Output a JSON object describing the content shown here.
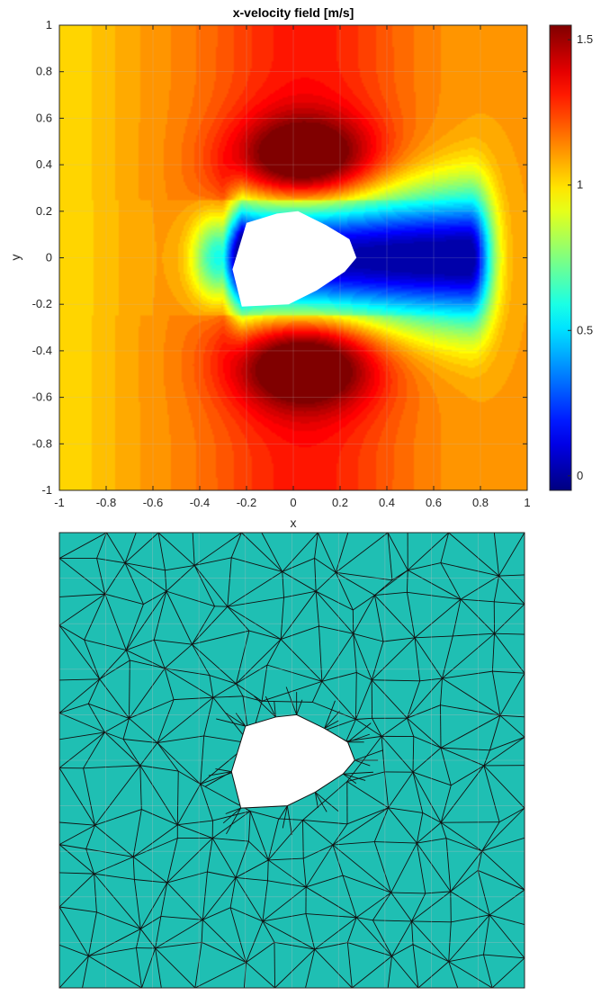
{
  "chart_data": [
    {
      "type": "heatmap",
      "title": "x-velocity field [m/s]",
      "xlabel": "x",
      "ylabel": "y",
      "xlim": [
        -1,
        1
      ],
      "ylim": [
        -1,
        1
      ],
      "xticks": [
        -1,
        -0.8,
        -0.6,
        -0.4,
        -0.2,
        0,
        0.2,
        0.4,
        0.6,
        0.8,
        1
      ],
      "xtick_labels": [
        "-1",
        "-0.8",
        "-0.6",
        "-0.4",
        "-0.2",
        "0",
        "0.2",
        "0.4",
        "0.6",
        "0.8",
        "1"
      ],
      "yticks": [
        1,
        0.8,
        0.6,
        0.4,
        0.2,
        0,
        -0.2,
        -0.4,
        -0.6,
        -0.8,
        -1
      ],
      "ytick_labels": [
        "1",
        "0.8",
        "0.6",
        "0.4",
        "0.2",
        "0",
        "-0.2",
        "-0.4",
        "-0.6",
        "-0.8",
        "-1"
      ],
      "grid": true,
      "colormap": "jet",
      "colorbar": {
        "limits": [
          -0.05,
          1.55
        ],
        "ticks": [
          0,
          0.5,
          1,
          1.5
        ],
        "tick_labels": [
          "0",
          "0.5",
          "1",
          "1.5"
        ]
      },
      "freestream_value": 1.1,
      "wake_min_value": 0.0,
      "max_value": 1.55,
      "obstacle_outline": [
        [
          -0.26,
          -0.05
        ],
        [
          -0.2,
          0.15
        ],
        [
          -0.07,
          0.19
        ],
        [
          0.02,
          0.2
        ],
        [
          0.14,
          0.14
        ],
        [
          0.24,
          0.08
        ],
        [
          0.27,
          0.0
        ],
        [
          0.22,
          -0.06
        ],
        [
          0.1,
          -0.14
        ],
        [
          -0.02,
          -0.2
        ],
        [
          -0.22,
          -0.21
        ]
      ]
    },
    {
      "type": "mesh",
      "xlim": [
        -1,
        1
      ],
      "ylim": [
        -1,
        1
      ],
      "face_color": "#1fbfb3",
      "edge_color": "#111111",
      "grid": true,
      "obstacle_outline": [
        [
          -0.26,
          -0.05
        ],
        [
          -0.2,
          0.15
        ],
        [
          -0.07,
          0.19
        ],
        [
          0.02,
          0.2
        ],
        [
          0.14,
          0.14
        ],
        [
          0.24,
          0.08
        ],
        [
          0.27,
          0.0
        ],
        [
          0.22,
          -0.06
        ],
        [
          0.1,
          -0.14
        ],
        [
          -0.02,
          -0.2
        ],
        [
          -0.22,
          -0.21
        ]
      ]
    }
  ]
}
